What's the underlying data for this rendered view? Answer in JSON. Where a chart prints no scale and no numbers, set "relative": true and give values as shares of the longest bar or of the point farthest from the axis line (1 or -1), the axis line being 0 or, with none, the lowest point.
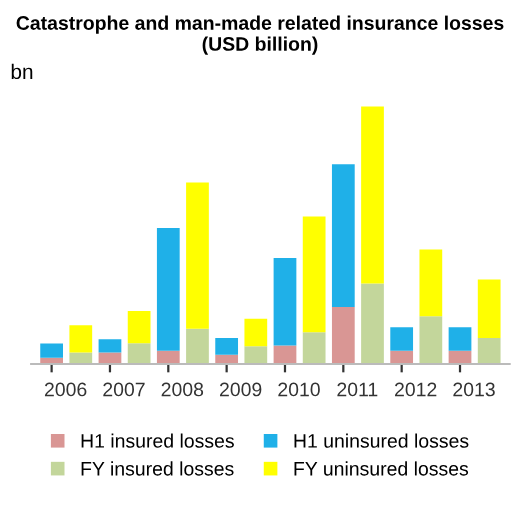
{
  "chart_data": {
    "type": "bar",
    "title": "Catastrophe and man-made related insurance losses (USD billion)",
    "annotations": [
      "bn"
    ],
    "categories": [
      "2006",
      null,
      "2007",
      null,
      "2008",
      null,
      "2009",
      null,
      "2010",
      null,
      "2011",
      null,
      "2012",
      null,
      "2013",
      null
    ],
    "relative": true,
    "stacked": true,
    "legend": "bottom",
    "series": [
      {
        "name": "H1 insured losses",
        "color": "#d99694",
        "values": [
          0.024,
          null,
          0.045,
          null,
          0.051,
          null,
          0.036,
          null,
          0.072,
          null,
          0.221,
          null,
          0.051,
          null,
          0.051,
          null
        ]
      },
      {
        "name": "H1 uninsured losses",
        "color": "#1fb0e8",
        "values": [
          0.056,
          null,
          0.051,
          null,
          0.477,
          null,
          0.065,
          null,
          0.34,
          null,
          0.555,
          null,
          0.092,
          null,
          0.092,
          null
        ]
      },
      {
        "name": "FY insured losses",
        "color": "#c3d69b",
        "values": [
          null,
          0.045,
          null,
          0.081,
          null,
          0.137,
          null,
          0.069,
          null,
          0.123,
          null,
          0.313,
          null,
          0.185,
          null,
          0.101
        ]
      },
      {
        "name": "FY uninsured losses",
        "color": "#ffff00",
        "values": [
          null,
          0.105,
          null,
          0.125,
          null,
          0.568,
          null,
          0.107,
          null,
          0.45,
          null,
          0.687,
          null,
          0.26,
          null,
          0.227
        ]
      }
    ]
  }
}
